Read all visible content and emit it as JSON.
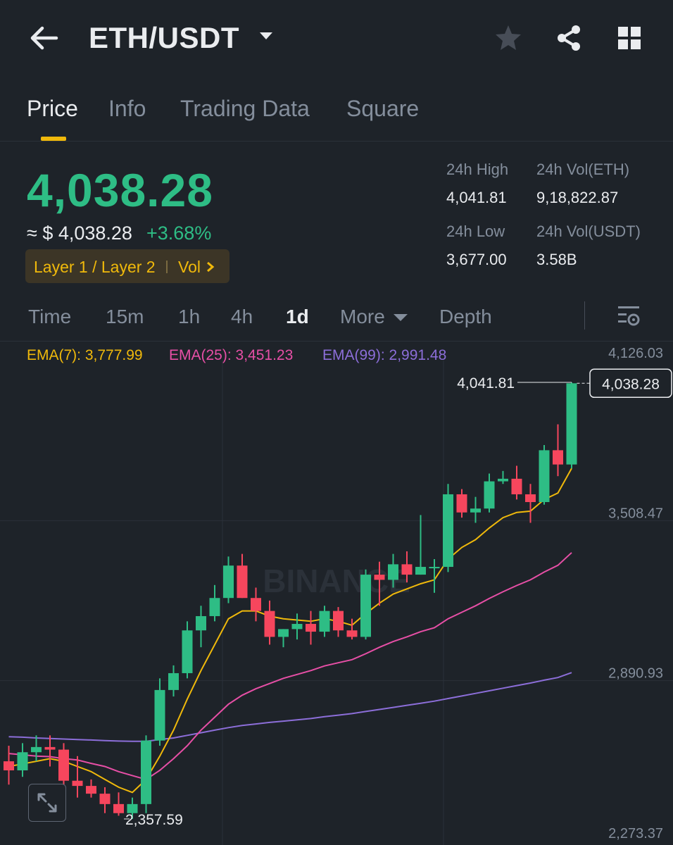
{
  "header": {
    "pair": "ETH/USDT"
  },
  "tabs": [
    "Price",
    "Info",
    "Trading Data",
    "Square"
  ],
  "price": {
    "last": "4,038.28",
    "approx_usd": "≈ $ 4,038.28",
    "change": "+3.68%",
    "tag": "Layer 1 / Layer 2",
    "tag_vol": "Vol"
  },
  "stats": {
    "high_label": "24h High",
    "high_value": "4,041.81",
    "low_label": "24h Low",
    "low_value": "3,677.00",
    "vol_eth_label": "24h Vol(ETH)",
    "vol_eth_value": "9,18,822.87",
    "vol_usdt_label": "24h Vol(USDT)",
    "vol_usdt_value": "3.58B"
  },
  "intervals": [
    "Time",
    "15m",
    "1h",
    "4h",
    "1d",
    "More",
    "Depth"
  ],
  "active_interval": "1d",
  "ema": {
    "ema7": "EMA(7): 3,777.99",
    "ema25": "EMA(25): 3,451.23",
    "ema99": "EMA(99): 2,991.48"
  },
  "colors": {
    "up": "#2ebd85",
    "down": "#f6465d",
    "accent": "#f0b90b",
    "ema7": "#f0b90b",
    "ema25": "#e74fa6",
    "ema99": "#8c6ed9"
  },
  "watermark": "BINANCE",
  "chart_data": {
    "type": "candlestick",
    "y_ticks": [
      "4,126.03",
      "3,508.47",
      "2,890.93",
      "2,273.37"
    ],
    "ylim": [
      2273.37,
      4126.03
    ],
    "last_price_label": "4,038.28",
    "high_marker": "4,041.81",
    "low_marker": "2,357.59",
    "candles": [
      {
        "o": 2580,
        "h": 2640,
        "l": 2490,
        "c": 2545
      },
      {
        "o": 2545,
        "h": 2650,
        "l": 2520,
        "c": 2615
      },
      {
        "o": 2615,
        "h": 2680,
        "l": 2580,
        "c": 2635
      },
      {
        "o": 2635,
        "h": 2680,
        "l": 2560,
        "c": 2625
      },
      {
        "o": 2625,
        "h": 2650,
        "l": 2480,
        "c": 2505
      },
      {
        "o": 2505,
        "h": 2600,
        "l": 2440,
        "c": 2485
      },
      {
        "o": 2485,
        "h": 2510,
        "l": 2440,
        "c": 2455
      },
      {
        "o": 2455,
        "h": 2480,
        "l": 2380,
        "c": 2415
      },
      {
        "o": 2415,
        "h": 2460,
        "l": 2370,
        "c": 2380
      },
      {
        "o": 2380,
        "h": 2440,
        "l": 2357.59,
        "c": 2415
      },
      {
        "o": 2415,
        "h": 2680,
        "l": 2380,
        "c": 2660
      },
      {
        "o": 2660,
        "h": 2900,
        "l": 2640,
        "c": 2855
      },
      {
        "o": 2855,
        "h": 2950,
        "l": 2830,
        "c": 2920
      },
      {
        "o": 2920,
        "h": 3120,
        "l": 2900,
        "c": 3085
      },
      {
        "o": 3085,
        "h": 3180,
        "l": 3020,
        "c": 3140
      },
      {
        "o": 3140,
        "h": 3260,
        "l": 3120,
        "c": 3210
      },
      {
        "o": 3210,
        "h": 3370,
        "l": 3190,
        "c": 3335
      },
      {
        "o": 3335,
        "h": 3380,
        "l": 3210,
        "c": 3210
      },
      {
        "o": 3210,
        "h": 3250,
        "l": 3120,
        "c": 3160
      },
      {
        "o": 3160,
        "h": 3200,
        "l": 3030,
        "c": 3060
      },
      {
        "o": 3060,
        "h": 3090,
        "l": 3020,
        "c": 3090
      },
      {
        "o": 3090,
        "h": 3150,
        "l": 3050,
        "c": 3110
      },
      {
        "o": 3110,
        "h": 3160,
        "l": 3030,
        "c": 3080
      },
      {
        "o": 3080,
        "h": 3180,
        "l": 3060,
        "c": 3160
      },
      {
        "o": 3160,
        "h": 3175,
        "l": 3060,
        "c": 3085
      },
      {
        "o": 3085,
        "h": 3130,
        "l": 3050,
        "c": 3060
      },
      {
        "o": 3060,
        "h": 3320,
        "l": 3050,
        "c": 3300
      },
      {
        "o": 3300,
        "h": 3350,
        "l": 3180,
        "c": 3280
      },
      {
        "o": 3280,
        "h": 3380,
        "l": 3250,
        "c": 3340
      },
      {
        "o": 3340,
        "h": 3390,
        "l": 3270,
        "c": 3300
      },
      {
        "o": 3300,
        "h": 3530,
        "l": 3300,
        "c": 3330
      },
      {
        "o": 3330,
        "h": 3360,
        "l": 3230,
        "c": 3330
      },
      {
        "o": 3330,
        "h": 3650,
        "l": 3310,
        "c": 3610
      },
      {
        "o": 3610,
        "h": 3630,
        "l": 3520,
        "c": 3540
      },
      {
        "o": 3540,
        "h": 3600,
        "l": 3500,
        "c": 3555
      },
      {
        "o": 3555,
        "h": 3690,
        "l": 3540,
        "c": 3660
      },
      {
        "o": 3660,
        "h": 3700,
        "l": 3650,
        "c": 3670
      },
      {
        "o": 3670,
        "h": 3720,
        "l": 3590,
        "c": 3610
      },
      {
        "o": 3610,
        "h": 3650,
        "l": 3500,
        "c": 3580
      },
      {
        "o": 3580,
        "h": 3800,
        "l": 3570,
        "c": 3780
      },
      {
        "o": 3780,
        "h": 3880,
        "l": 3680,
        "c": 3725
      },
      {
        "o": 3725,
        "h": 4041.81,
        "l": 3710,
        "c": 4038.28
      }
    ],
    "ema7": [
      2560,
      2570,
      2580,
      2590,
      2580,
      2560,
      2540,
      2510,
      2480,
      2460,
      2510,
      2600,
      2700,
      2820,
      2930,
      3030,
      3130,
      3160,
      3160,
      3140,
      3130,
      3125,
      3120,
      3130,
      3120,
      3105,
      3150,
      3190,
      3225,
      3245,
      3265,
      3280,
      3360,
      3405,
      3435,
      3480,
      3520,
      3540,
      3545,
      3590,
      3615,
      3710
    ],
    "ema25": [
      2610,
      2605,
      2600,
      2598,
      2590,
      2585,
      2572,
      2560,
      2540,
      2525,
      2510,
      2545,
      2590,
      2640,
      2700,
      2750,
      2800,
      2835,
      2860,
      2880,
      2900,
      2915,
      2930,
      2948,
      2960,
      2972,
      2995,
      3020,
      3042,
      3060,
      3080,
      3095,
      3130,
      3155,
      3180,
      3208,
      3234,
      3258,
      3280,
      3310,
      3336,
      3385
    ],
    "ema99": [
      2675,
      2673,
      2670,
      2668,
      2666,
      2664,
      2662,
      2660,
      2658,
      2657,
      2657,
      2664,
      2670,
      2680,
      2690,
      2700,
      2710,
      2718,
      2724,
      2730,
      2735,
      2740,
      2745,
      2752,
      2758,
      2764,
      2772,
      2780,
      2788,
      2796,
      2804,
      2812,
      2822,
      2832,
      2842,
      2852,
      2862,
      2872,
      2882,
      2893,
      2903,
      2922
    ]
  }
}
